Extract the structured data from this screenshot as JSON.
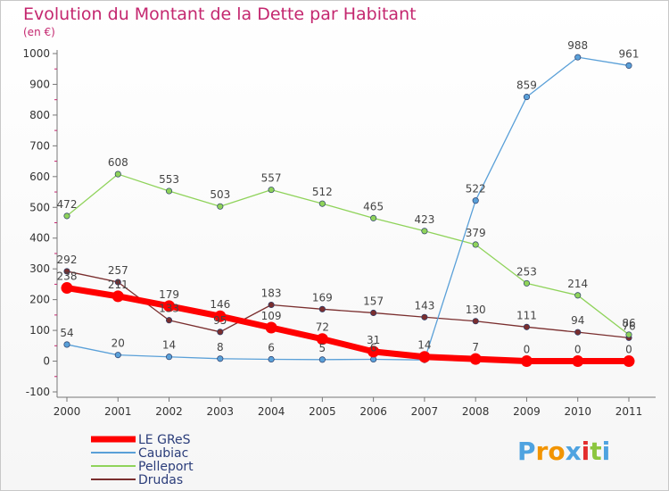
{
  "chart_data": {
    "type": "line",
    "title": "Evolution du Montant de la Dette par Habitant",
    "subtitle": "(en €)",
    "xlabel": "",
    "ylabel": "",
    "ylim": [
      -100,
      1000
    ],
    "yticks": [
      "-100",
      "0",
      "100",
      "200",
      "300",
      "400",
      "500",
      "600",
      "700",
      "800",
      "900",
      "1000"
    ],
    "categories": [
      "2000",
      "2001",
      "2002",
      "2003",
      "2004",
      "2005",
      "2006",
      "2007",
      "2008",
      "2009",
      "2010",
      "2011"
    ],
    "grid": false,
    "legend_position": "bottom-left",
    "series": [
      {
        "name": "LE GReS",
        "color": "#ff0000",
        "values": [
          238,
          211,
          179,
          146,
          109,
          72,
          31,
          14,
          7,
          0,
          0,
          0
        ],
        "labels": [
          "238",
          "211",
          "179",
          "146",
          "109",
          "72",
          "31",
          "14",
          "7",
          "0",
          "0",
          "0"
        ]
      },
      {
        "name": "Caubiac",
        "color": "#5aa0d8",
        "values": [
          54,
          20,
          14,
          8,
          6,
          5,
          6,
          4,
          522,
          859,
          988,
          961
        ],
        "labels": [
          "54",
          "20",
          "14",
          "8",
          "6",
          "5",
          "6",
          "",
          "522",
          "859",
          "988",
          "961"
        ]
      },
      {
        "name": "Pelleport",
        "color": "#8fd35a",
        "values": [
          472,
          608,
          553,
          503,
          557,
          512,
          465,
          423,
          379,
          253,
          214,
          86
        ],
        "labels": [
          "472",
          "608",
          "553",
          "503",
          "557",
          "512",
          "465",
          "423",
          "379",
          "253",
          "214",
          "86"
        ]
      },
      {
        "name": "Drudas",
        "color": "#7a2e2e",
        "values": [
          292,
          257,
          133,
          95,
          183,
          169,
          157,
          143,
          130,
          111,
          94,
          76
        ],
        "labels": [
          "292",
          "257",
          "133",
          "95",
          "183",
          "169",
          "157",
          "143",
          "130",
          "111",
          "94",
          "76"
        ]
      }
    ]
  },
  "logo": {
    "text": "Proxiti",
    "letter_colors": [
      "#4fa3e0",
      "#f29400",
      "#f29400",
      "#4fa3e0",
      "#e32d2d",
      "#8cc63f",
      "#4fa3e0"
    ]
  }
}
